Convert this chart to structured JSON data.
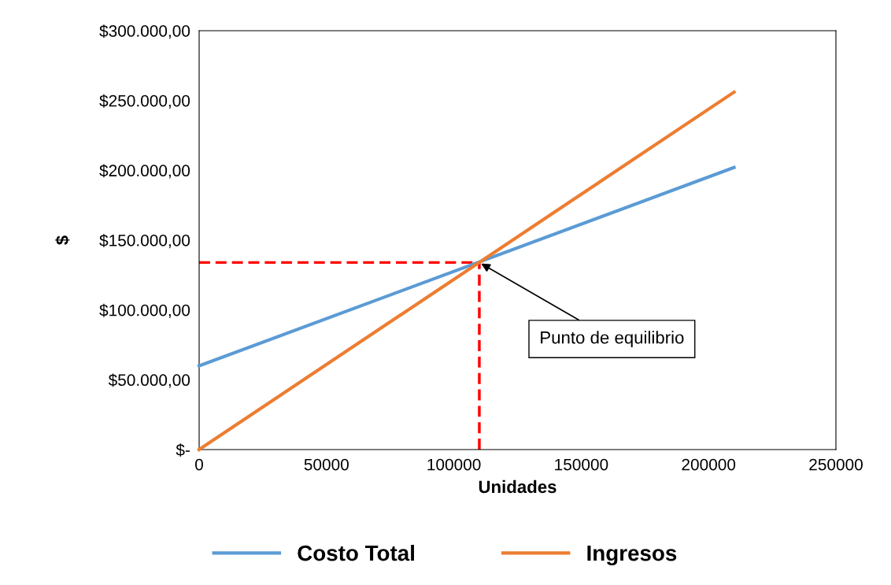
{
  "chart_data": {
    "type": "line",
    "xlabel": "Unidades",
    "ylabel": "$",
    "series": [
      {
        "name": "Costo Total",
        "color": "#5b9bd5",
        "x": [
          0,
          210000
        ],
        "values": [
          60000,
          202000
        ]
      },
      {
        "name": "Ingresos",
        "color": "#ed7d31",
        "x": [
          0,
          210000
        ],
        "values": [
          0,
          256000
        ]
      },
      {
        "color": "#ff0000",
        "line_style": "dashed",
        "x": [
          0,
          110000
        ],
        "values": [
          134000,
          134000
        ]
      },
      {
        "color": "#ff0000",
        "line_style": "dashed",
        "x": [
          110000,
          110000
        ],
        "values": [
          0,
          134000
        ]
      }
    ],
    "xlim": [
      0,
      250000
    ],
    "xticks": [
      0,
      50000,
      100000,
      150000,
      200000,
      250000
    ],
    "ylim": [
      0,
      300000
    ],
    "yticks": [
      {
        "value": 0,
        "label": "$-"
      },
      {
        "value": 50000,
        "label": "$50.000,00"
      },
      {
        "value": 100000,
        "label": "$100.000,00"
      },
      {
        "value": 150000,
        "label": "$150.000,00"
      },
      {
        "value": 200000,
        "label": "$200.000,00"
      },
      {
        "value": 250000,
        "label": "$250.000,00"
      },
      {
        "value": 300000,
        "label": "$300.000,00"
      }
    ],
    "annotations": [
      {
        "text": "Punto de equilibrio",
        "x": 110000,
        "y": 134000
      }
    ],
    "grid": false,
    "legend": "bottom",
    "marker": "none",
    "line_style": "solid"
  }
}
